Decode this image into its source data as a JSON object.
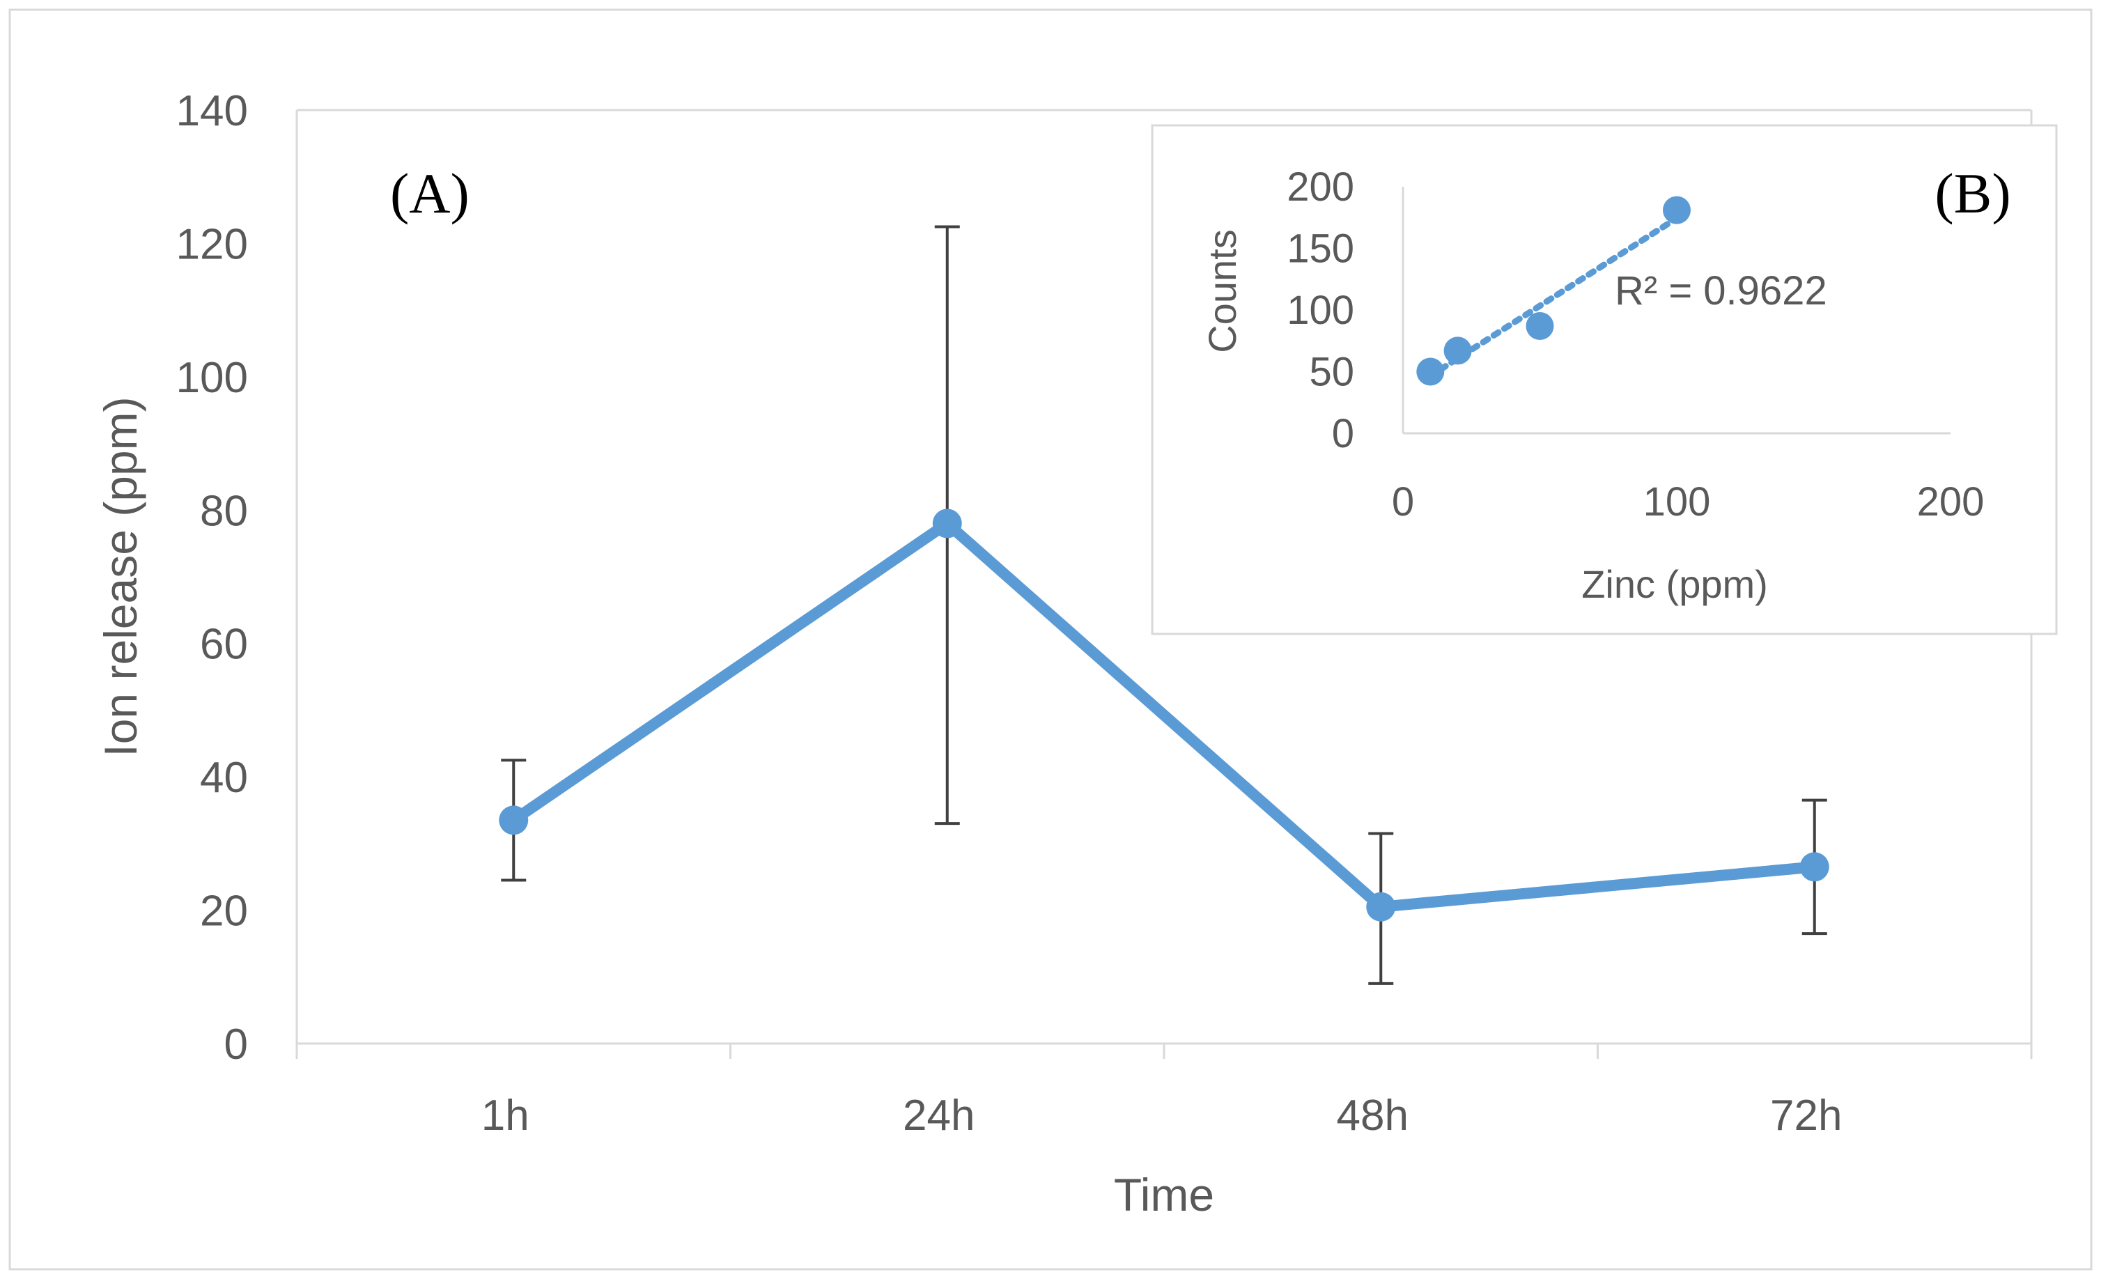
{
  "chart_data": [
    {
      "type": "line",
      "panel_label": "(A)",
      "categories": [
        "1h",
        "24h",
        "48h",
        "72h"
      ],
      "series": [
        {
          "name": "Ion release",
          "values": [
            33.5,
            78,
            20.5,
            26.5
          ],
          "error_high": [
            42.5,
            122.5,
            31.5,
            36.5
          ],
          "error_low": [
            24.5,
            33,
            9,
            16.5
          ]
        }
      ],
      "xlabel": "Time",
      "ylabel": "Ion release (ppm)",
      "ylim": [
        0,
        140
      ],
      "yticks": [
        "0",
        "20",
        "40",
        "60",
        "80",
        "100",
        "120",
        "140"
      ],
      "color": "#5b9bd5"
    },
    {
      "type": "scatter",
      "panel_label": "(B)",
      "points": [
        {
          "x": 10,
          "y": 50
        },
        {
          "x": 20,
          "y": 67
        },
        {
          "x": 50,
          "y": 87
        },
        {
          "x": 100,
          "y": 181
        }
      ],
      "trendline": {
        "type": "linear",
        "style": "dotted"
      },
      "annotation": "R² = 0.9622",
      "xlabel": "Zinc (ppm)",
      "ylabel": "Counts",
      "xlim": [
        0,
        200
      ],
      "ylim": [
        0,
        200
      ],
      "xticks": [
        "0",
        "100",
        "200"
      ],
      "yticks": [
        "0",
        "50",
        "100",
        "150",
        "200"
      ],
      "color": "#5b9bd5"
    }
  ]
}
